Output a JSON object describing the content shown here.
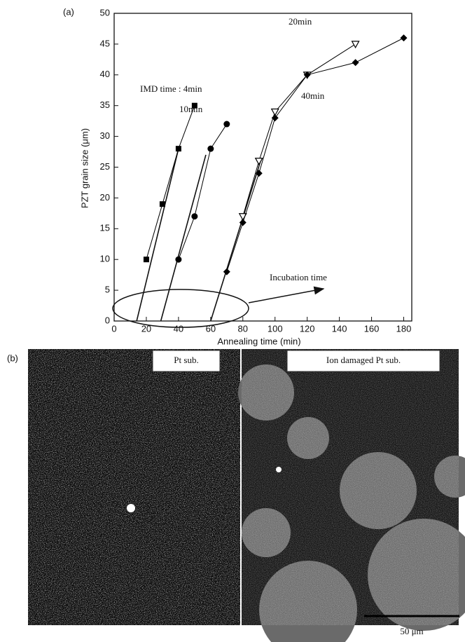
{
  "chart_data": {
    "type": "line",
    "panel_label": "(a)",
    "x_label": "Annealing time (min)",
    "y_label": "PZT grain size (μm)",
    "xlim": [
      0,
      185
    ],
    "ylim": [
      0,
      50
    ],
    "xticks": [
      0,
      20,
      40,
      60,
      80,
      100,
      120,
      140,
      160,
      180
    ],
    "yticks": [
      0,
      5,
      10,
      15,
      20,
      25,
      30,
      35,
      40,
      45,
      50
    ],
    "series": [
      {
        "name": "IMD time : 4min",
        "color": "#000000",
        "marker": "square",
        "x": [
          20,
          30,
          40,
          50
        ],
        "values": [
          10,
          19,
          28,
          35
        ]
      },
      {
        "name": "10min",
        "color": "#000000",
        "marker": "circle",
        "x": [
          40,
          50,
          60,
          70
        ],
        "values": [
          10,
          17,
          28,
          32
        ]
      },
      {
        "name": "20min",
        "color": "#000000",
        "marker": "triangle-down-open",
        "x": [
          80,
          90,
          100,
          120,
          150
        ],
        "values": [
          17,
          26,
          34,
          40,
          45
        ]
      },
      {
        "name": "40min",
        "color": "#000000",
        "marker": "diamond",
        "x": [
          70,
          80,
          90,
          100,
          120,
          150,
          180
        ],
        "values": [
          8,
          16,
          24,
          33,
          40,
          42,
          46
        ]
      }
    ],
    "fit_lines": [
      {
        "x": [
          14,
          40
        ],
        "values": [
          0,
          28
        ]
      },
      {
        "x": [
          29,
          57
        ],
        "values": [
          0,
          27
        ]
      },
      {
        "x": [
          60,
          91
        ],
        "values": [
          0,
          26
        ]
      }
    ],
    "annotation": "Incubation time"
  },
  "micrograph": {
    "panel_label": "(b)",
    "left_label": "Pt sub.",
    "right_label": "Ion damaged Pt sub.",
    "scale_bar": "50 μm"
  }
}
